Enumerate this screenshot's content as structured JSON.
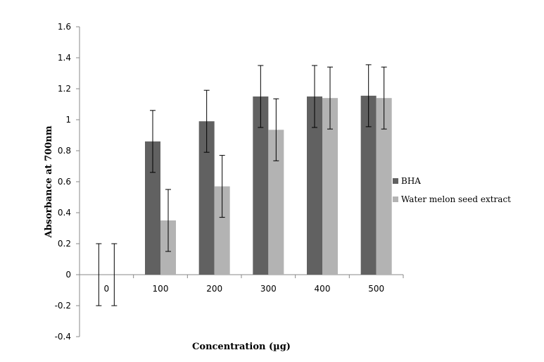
{
  "chart_data": {
    "type": "bar",
    "categories": [
      "0",
      "100",
      "200",
      "300",
      "400",
      "500"
    ],
    "series": [
      {
        "name": "BHA",
        "values": [
          0,
          0.86,
          0.99,
          1.15,
          1.15,
          1.155
        ],
        "error": [
          0.2,
          0.2,
          0.2,
          0.2,
          0.2,
          0.2
        ],
        "color": "#616161"
      },
      {
        "name": "Water melon seed extract",
        "values": [
          0,
          0.35,
          0.57,
          0.935,
          1.14,
          1.14
        ],
        "error": [
          0.2,
          0.2,
          0.2,
          0.2,
          0.2,
          0.2
        ],
        "color": "#b3b3b3"
      }
    ],
    "xlabel": "Concentration (µg)",
    "ylabel": "Absorbance at 700nm",
    "ylim": [
      -0.4,
      1.6
    ],
    "yticks": [
      "-0.4",
      "-0.2",
      "0",
      "0.2",
      "0.4",
      "0.6",
      "0.8",
      "1",
      "1.2",
      "1.4",
      "1.6"
    ],
    "grid": false,
    "legend_position": "right"
  }
}
